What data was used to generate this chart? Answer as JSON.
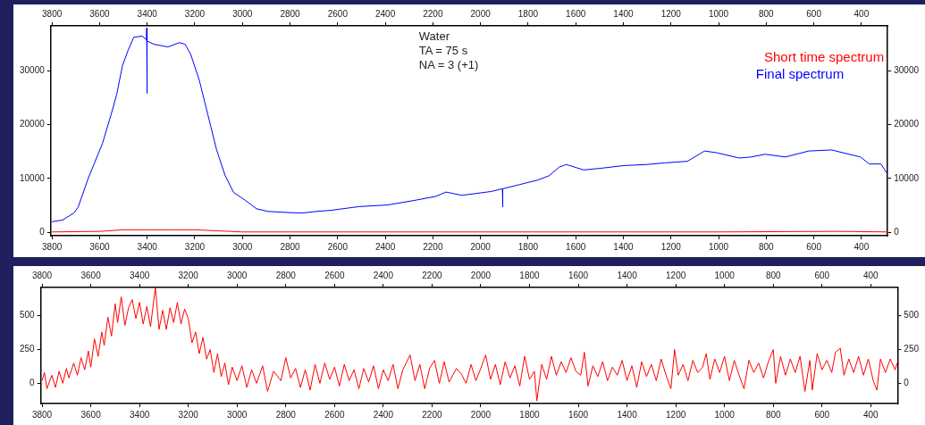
{
  "chart_data": [
    {
      "type": "line",
      "annotations": [
        "Water",
        "TA = 75 s",
        "NA = 3 (+1)"
      ],
      "legend": "top right",
      "grid": false,
      "marker": "none",
      "line_style": "solid",
      "xlim": [
        3805,
        290
      ],
      "xticks": [
        3800,
        3600,
        3400,
        3200,
        3000,
        2800,
        2600,
        2400,
        2200,
        2000,
        1800,
        1600,
        1400,
        1200,
        1000,
        800,
        600,
        400
      ],
      "x2lim": [
        3805,
        290
      ],
      "x2ticks": [
        3800,
        3600,
        3400,
        3200,
        3000,
        2800,
        2600,
        2400,
        2200,
        2000,
        1800,
        1600,
        1400,
        1200,
        1000,
        800,
        600,
        400
      ],
      "ylim": [
        -600,
        38300
      ],
      "yticks": [
        0,
        10000,
        20000,
        30000
      ],
      "y2lim": [
        -600,
        38300
      ],
      "y2ticks": [
        0,
        10000,
        20000,
        30000
      ],
      "series": [
        {
          "name": "Short time spectrum",
          "color": "#ff0000",
          "x": [
            3800,
            3600,
            3500,
            3400,
            3300,
            3200,
            3100,
            3000,
            2500,
            1500,
            1000,
            500,
            290
          ],
          "values": [
            100,
            200,
            500,
            500,
            500,
            500,
            300,
            100,
            100,
            100,
            100,
            200,
            100
          ]
        },
        {
          "name": "Final spectrum",
          "color": "#0000ff",
          "x": [
            3800,
            3756,
            3708,
            3690,
            3648,
            3588,
            3552,
            3528,
            3504,
            3480,
            3456,
            3420,
            3403,
            3402,
            3401,
            3400,
            3372,
            3313,
            3265,
            3241,
            3217,
            3181,
            3145,
            3109,
            3073,
            3037,
            2989,
            2941,
            2893,
            2810,
            2750,
            2690,
            2630,
            2510,
            2390,
            2271,
            2187,
            2145,
            2091,
            2076,
            1955,
            1908,
            1907,
            1906,
            1834,
            1761,
            1713,
            1670,
            1640,
            1567,
            1495,
            1398,
            1301,
            1228,
            1131,
            1059,
            1010,
            913,
            864,
            804,
            719,
            622,
            525,
            452,
            404,
            367,
            318,
            295
          ],
          "values": [
            2000,
            2300,
            3600,
            4700,
            10000,
            16500,
            21800,
            25600,
            30900,
            33800,
            36200,
            36400,
            35700,
            37900,
            25800,
            35500,
            34900,
            34400,
            35200,
            34900,
            33000,
            28200,
            21800,
            15400,
            10600,
            7400,
            6000,
            4400,
            3900,
            3700,
            3600,
            3900,
            4100,
            4800,
            5100,
            6000,
            6700,
            7500,
            7000,
            6900,
            7600,
            8100,
            4700,
            8100,
            8900,
            9700,
            10500,
            12100,
            12600,
            11600,
            11900,
            12400,
            12600,
            12900,
            13200,
            15100,
            14800,
            13800,
            14000,
            14500,
            14000,
            15100,
            15300,
            14500,
            14000,
            12700,
            12700,
            11100
          ]
        }
      ]
    },
    {
      "type": "line",
      "grid": false,
      "marker": "none",
      "line_style": "solid",
      "xlim": [
        3805,
        290
      ],
      "xticks": [
        3800,
        3600,
        3400,
        3200,
        3000,
        2800,
        2600,
        2400,
        2200,
        2000,
        1800,
        1600,
        1400,
        1200,
        1000,
        800,
        600,
        400
      ],
      "x2lim": [
        3805,
        290
      ],
      "x2ticks": [
        3800,
        3600,
        3400,
        3200,
        3000,
        2800,
        2600,
        2400,
        2200,
        2000,
        1800,
        1600,
        1400,
        1200,
        1000,
        800,
        600,
        400
      ],
      "ylim": [
        -150,
        710
      ],
      "yticks": [
        0,
        250,
        500
      ],
      "y2lim": [
        -150,
        710
      ],
      "y2ticks": [
        0,
        250,
        500
      ],
      "series": [
        {
          "color": "#ff0000",
          "x": [
            3800,
            3790,
            3780,
            3760,
            3745,
            3730,
            3715,
            3700,
            3690,
            3670,
            3655,
            3640,
            3625,
            3610,
            3600,
            3585,
            3570,
            3555,
            3545,
            3530,
            3515,
            3500,
            3490,
            3475,
            3460,
            3445,
            3430,
            3415,
            3400,
            3385,
            3370,
            3355,
            3335,
            3320,
            3305,
            3290,
            3275,
            3260,
            3245,
            3230,
            3215,
            3200,
            3185,
            3170,
            3155,
            3140,
            3125,
            3110,
            3095,
            3080,
            3065,
            3050,
            3035,
            3020,
            3000,
            2980,
            2960,
            2940,
            2920,
            2895,
            2875,
            2850,
            2820,
            2800,
            2780,
            2760,
            2740,
            2720,
            2700,
            2680,
            2660,
            2640,
            2620,
            2600,
            2580,
            2560,
            2540,
            2520,
            2500,
            2480,
            2460,
            2440,
            2420,
            2400,
            2380,
            2360,
            2340,
            2320,
            2290,
            2270,
            2250,
            2230,
            2210,
            2190,
            2170,
            2150,
            2130,
            2100,
            2080,
            2060,
            2040,
            2020,
            2000,
            1980,
            1960,
            1940,
            1920,
            1900,
            1880,
            1860,
            1840,
            1820,
            1800,
            1780,
            1770,
            1750,
            1730,
            1710,
            1690,
            1670,
            1650,
            1630,
            1610,
            1590,
            1575,
            1560,
            1540,
            1520,
            1500,
            1480,
            1460,
            1440,
            1420,
            1400,
            1380,
            1360,
            1340,
            1320,
            1300,
            1280,
            1260,
            1240,
            1220,
            1205,
            1190,
            1170,
            1150,
            1130,
            1110,
            1090,
            1075,
            1060,
            1040,
            1020,
            1000,
            980,
            960,
            940,
            920,
            900,
            880,
            860,
            840,
            820,
            800,
            790,
            770,
            750,
            730,
            710,
            690,
            670,
            650,
            640,
            620,
            600,
            580,
            560,
            545,
            525,
            510,
            490,
            470,
            450,
            430,
            410,
            390,
            375,
            360,
            340,
            320,
            300,
            292
          ],
          "values": [
            20,
            80,
            -40,
            60,
            -30,
            90,
            0,
            110,
            40,
            150,
            60,
            190,
            100,
            240,
            120,
            330,
            200,
            380,
            280,
            490,
            350,
            590,
            450,
            640,
            430,
            560,
            620,
            480,
            600,
            440,
            570,
            420,
            710,
            400,
            540,
            400,
            560,
            450,
            600,
            440,
            550,
            480,
            300,
            380,
            220,
            340,
            180,
            250,
            80,
            220,
            50,
            150,
            -10,
            120,
            20,
            130,
            -30,
            100,
            0,
            130,
            -60,
            90,
            20,
            190,
            40,
            110,
            -30,
            100,
            -50,
            140,
            0,
            150,
            30,
            120,
            -20,
            140,
            20,
            100,
            -40,
            110,
            10,
            130,
            -40,
            100,
            20,
            140,
            -40,
            100,
            210,
            20,
            140,
            -40,
            110,
            170,
            0,
            160,
            10,
            110,
            70,
            0,
            140,
            20,
            110,
            210,
            30,
            140,
            -10,
            160,
            40,
            130,
            -20,
            200,
            30,
            90,
            -130,
            140,
            30,
            200,
            60,
            160,
            80,
            190,
            90,
            60,
            230,
            -20,
            130,
            50,
            160,
            20,
            120,
            60,
            170,
            20,
            130,
            -30,
            160,
            50,
            140,
            20,
            180,
            60,
            -40,
            250,
            60,
            140,
            20,
            170,
            80,
            120,
            220,
            30,
            180,
            80,
            200,
            20,
            170,
            60,
            -40,
            170,
            80,
            150,
            40,
            160,
            250,
            0,
            200,
            60,
            180,
            80,
            200,
            -60,
            170,
            -50,
            220,
            100,
            170,
            80,
            230,
            260,
            60,
            180,
            80,
            200,
            60,
            180,
            20,
            -50,
            180,
            80,
            180,
            100,
            150
          ]
        }
      ]
    }
  ]
}
